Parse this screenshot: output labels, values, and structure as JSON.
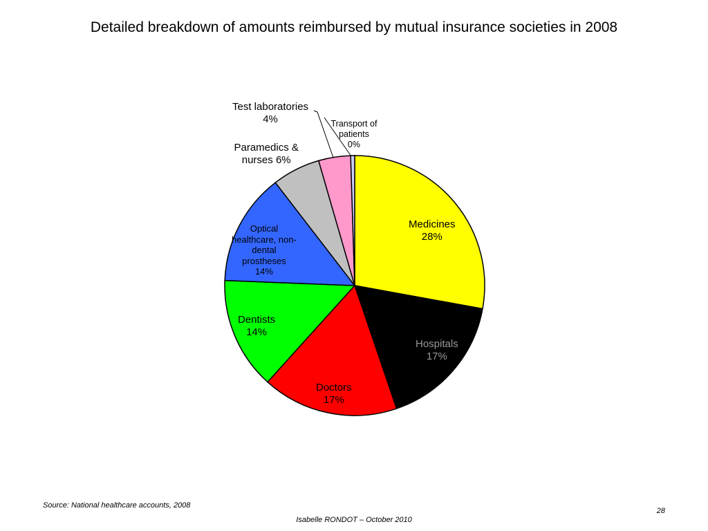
{
  "title": "Detailed breakdown of amounts reimbursed by mutual insurance societies in 2008",
  "source": "Source: National healthcare accounts, 2008",
  "page_number": "28",
  "footer": "Isabelle RONDOT – October 2010",
  "chart_data": {
    "type": "pie",
    "title": "Detailed breakdown of amounts reimbursed by mutual insurance societies in 2008",
    "start_angle_deg": 0,
    "direction": "clockwise",
    "slices": [
      {
        "name": "Medicines",
        "label_lines": [
          "Medicines",
          "28%"
        ],
        "value": 28,
        "color": "#FFFF00",
        "label_color": "#000000"
      },
      {
        "name": "Hospitals",
        "label_lines": [
          "Hospitals",
          "17%"
        ],
        "value": 17,
        "color": "#000000",
        "label_color": "#999999"
      },
      {
        "name": "Doctors",
        "label_lines": [
          "Doctors",
          "17%"
        ],
        "value": 17,
        "color": "#FF0000",
        "label_color": "#000000"
      },
      {
        "name": "Dentists",
        "label_lines": [
          "Dentists",
          "14%"
        ],
        "value": 14,
        "color": "#00FF00",
        "label_color": "#000000"
      },
      {
        "name": "Optical healthcare, non-dental prostheses",
        "label_lines": [
          "Optical",
          "healthcare, non-",
          "dental",
          "prostheses",
          "14%"
        ],
        "value": 14,
        "color": "#3366FF",
        "label_color": "#000000"
      },
      {
        "name": "Paramedics & nurses",
        "label_lines": [
          "Paramedics &",
          "nurses 6%"
        ],
        "value": 6,
        "color": "#C0C0C0",
        "label_color": "#000000"
      },
      {
        "name": "Test laboratories",
        "label_lines": [
          "Test laboratories",
          "4%"
        ],
        "value": 4,
        "color": "#FF99CC",
        "label_color": "#000000"
      },
      {
        "name": "Transport of patients",
        "label_lines": [
          "Transport of",
          "patients",
          "0%"
        ],
        "value": 0.5,
        "color": "#CCCCFF",
        "label_color": "#000000"
      }
    ]
  }
}
